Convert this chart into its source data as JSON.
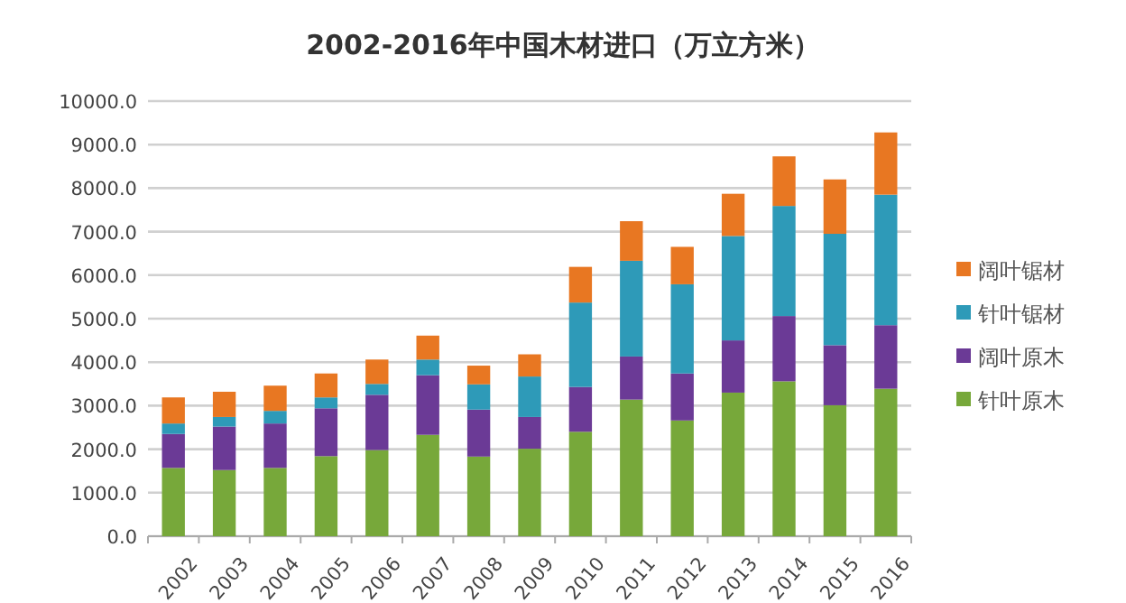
{
  "chart_data": {
    "type": "bar",
    "stacked": true,
    "title": "2002-2016年中国木材进口（万立方米）",
    "categories": [
      "2002",
      "2003",
      "2004",
      "2005",
      "2006",
      "2007",
      "2008",
      "2009",
      "2010",
      "2011",
      "2012",
      "2013",
      "2014",
      "2015",
      "2016"
    ],
    "series": [
      {
        "name": "针叶原木",
        "color": "#77a83a",
        "values": [
          1570,
          1520,
          1570,
          1840,
          1980,
          2330,
          1830,
          2010,
          2400,
          3140,
          2660,
          3300,
          3560,
          3010,
          3390
        ]
      },
      {
        "name": "阔叶原木",
        "color": "#6b3a96",
        "values": [
          780,
          1000,
          1020,
          1100,
          1270,
          1370,
          1080,
          730,
          1030,
          990,
          1080,
          1200,
          1500,
          1380,
          1460
        ]
      },
      {
        "name": "针叶锯材",
        "color": "#2e9ab8",
        "values": [
          240,
          220,
          290,
          250,
          250,
          360,
          580,
          930,
          1940,
          2200,
          2050,
          2400,
          2530,
          2560,
          3000
        ]
      },
      {
        "name": "阔叶锯材",
        "color": "#e87722",
        "values": [
          600,
          580,
          580,
          550,
          560,
          550,
          430,
          510,
          820,
          910,
          860,
          970,
          1140,
          1250,
          1430
        ]
      }
    ],
    "ylim": [
      0,
      10000
    ],
    "yticks": [
      {
        "value": 0,
        "label": "0.0"
      },
      {
        "value": 1000,
        "label": "1000.0"
      },
      {
        "value": 2000,
        "label": "2000.0"
      },
      {
        "value": 3000,
        "label": "3000.0"
      },
      {
        "value": 4000,
        "label": "4000.0"
      },
      {
        "value": 5000,
        "label": "5000.0"
      },
      {
        "value": 6000,
        "label": "6000.0"
      },
      {
        "value": 7000,
        "label": "7000.0"
      },
      {
        "value": 8000,
        "label": "8000.0"
      },
      {
        "value": 9000,
        "label": "9000.0"
      },
      {
        "value": 10000,
        "label": "10000.0"
      }
    ],
    "grid": "y",
    "legend": "right"
  }
}
